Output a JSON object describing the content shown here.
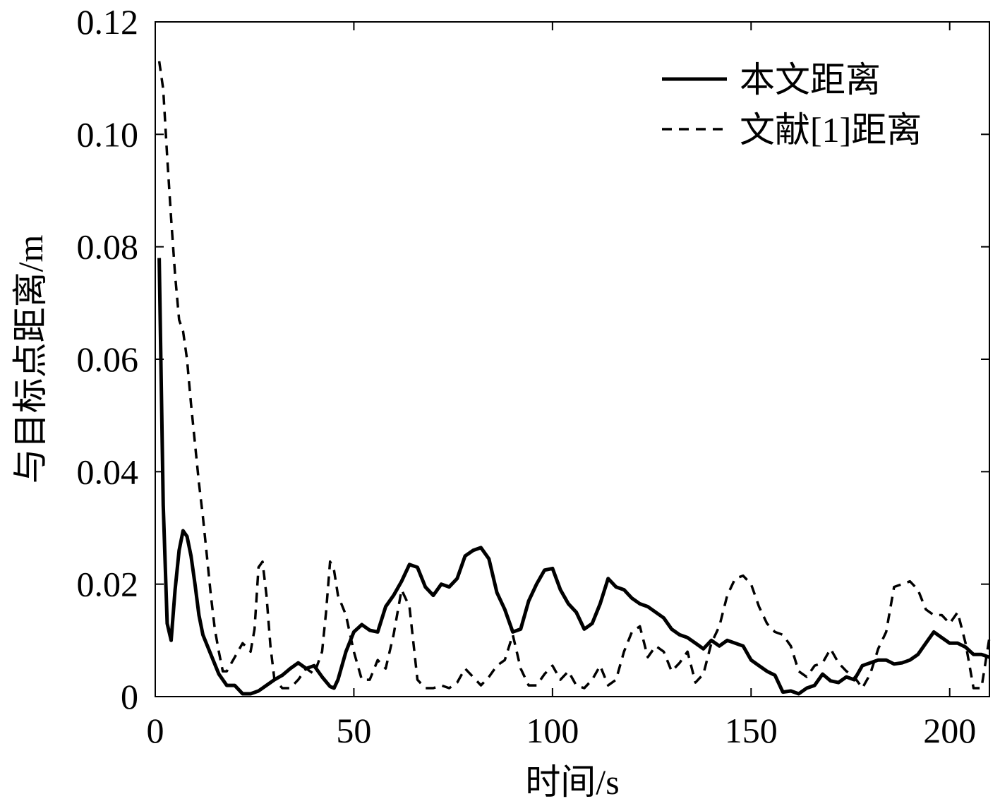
{
  "chart_data": {
    "type": "line",
    "title": "",
    "xlabel": "时间/s",
    "ylabel": "与目标点距离/m",
    "xlim": [
      0,
      210
    ],
    "ylim": [
      0,
      0.12
    ],
    "xticks": [
      0,
      50,
      100,
      150,
      200
    ],
    "xtick_labels": [
      "0",
      "50",
      "100",
      "150",
      "200"
    ],
    "yticks": [
      0,
      0.02,
      0.04,
      0.06,
      0.08,
      0.1,
      0.12
    ],
    "ytick_labels": [
      "0",
      "0.02",
      "0.04",
      "0.06",
      "0.08",
      "0.10",
      "0.12"
    ],
    "grid": false,
    "legend_position": "top-right",
    "series": [
      {
        "name": "本文距离",
        "style": "solid",
        "color": "#000000",
        "x": [
          1,
          2,
          3,
          4,
          5,
          6,
          7,
          8,
          9,
          10,
          11,
          12,
          14,
          16,
          18,
          20,
          22,
          24,
          26,
          28,
          30,
          32,
          34,
          36,
          38,
          40,
          42,
          44,
          45,
          46,
          48,
          50,
          52,
          54,
          56,
          58,
          60,
          62,
          64,
          66,
          68,
          70,
          72,
          74,
          76,
          78,
          80,
          82,
          84,
          86,
          88,
          90,
          92,
          94,
          96,
          98,
          100,
          102,
          104,
          106,
          108,
          110,
          112,
          114,
          116,
          118,
          120,
          122,
          124,
          126,
          128,
          130,
          132,
          134,
          136,
          138,
          140,
          142,
          144,
          146,
          148,
          150,
          152,
          154,
          156,
          158,
          160,
          162,
          164,
          166,
          168,
          170,
          172,
          174,
          176,
          178,
          180,
          182,
          184,
          186,
          188,
          190,
          192,
          194,
          196,
          198,
          200,
          202,
          204,
          206,
          208,
          210
        ],
        "y": [
          0.078,
          0.034,
          0.013,
          0.01,
          0.019,
          0.026,
          0.0295,
          0.0285,
          0.025,
          0.02,
          0.0145,
          0.011,
          0.0075,
          0.004,
          0.002,
          0.002,
          0.0005,
          0.0005,
          0.001,
          0.002,
          0.003,
          0.0038,
          0.005,
          0.006,
          0.005,
          0.0055,
          0.0035,
          0.0018,
          0.0015,
          0.003,
          0.008,
          0.0115,
          0.0128,
          0.0118,
          0.0115,
          0.016,
          0.018,
          0.0205,
          0.0235,
          0.023,
          0.0195,
          0.018,
          0.02,
          0.0195,
          0.021,
          0.025,
          0.026,
          0.0265,
          0.0245,
          0.0185,
          0.0155,
          0.0115,
          0.012,
          0.017,
          0.02,
          0.0225,
          0.0228,
          0.019,
          0.0165,
          0.015,
          0.012,
          0.013,
          0.0165,
          0.021,
          0.0195,
          0.019,
          0.0175,
          0.0165,
          0.016,
          0.015,
          0.014,
          0.012,
          0.011,
          0.0105,
          0.0095,
          0.0085,
          0.01,
          0.009,
          0.01,
          0.0095,
          0.009,
          0.0065,
          0.0055,
          0.0045,
          0.0038,
          0.0008,
          0.001,
          0.0005,
          0.0015,
          0.002,
          0.004,
          0.0028,
          0.0025,
          0.0035,
          0.003,
          0.0055,
          0.006,
          0.0065,
          0.0065,
          0.0058,
          0.006,
          0.0065,
          0.0075,
          0.0095,
          0.0115,
          0.0105,
          0.0095,
          0.0095,
          0.0088,
          0.0075,
          0.0075,
          0.007
        ]
      },
      {
        "name": "文献[1]距离",
        "style": "dashed",
        "color": "#000000",
        "x": [
          1,
          2,
          3,
          4,
          5,
          6,
          7,
          8,
          9,
          10,
          11,
          12,
          13,
          14,
          15,
          16,
          17,
          18,
          20,
          22,
          24,
          25,
          26,
          27,
          28,
          29,
          30,
          32,
          34,
          36,
          38,
          40,
          42,
          43,
          44,
          45,
          46,
          48,
          50,
          52,
          54,
          56,
          58,
          60,
          62,
          64,
          66,
          68,
          70,
          72,
          74,
          76,
          78,
          80,
          82,
          84,
          86,
          88,
          90,
          92,
          94,
          96,
          98,
          100,
          102,
          104,
          106,
          108,
          110,
          112,
          114,
          116,
          118,
          120,
          122,
          124,
          126,
          128,
          130,
          132,
          134,
          136,
          138,
          140,
          142,
          144,
          146,
          148,
          150,
          152,
          154,
          156,
          158,
          160,
          162,
          164,
          166,
          168,
          170,
          172,
          174,
          176,
          178,
          180,
          182,
          184,
          186,
          188,
          190,
          192,
          194,
          196,
          198,
          200,
          202,
          204,
          206,
          208,
          210
        ],
        "y": [
          0.113,
          0.108,
          0.096,
          0.085,
          0.075,
          0.067,
          0.065,
          0.06,
          0.052,
          0.045,
          0.038,
          0.032,
          0.025,
          0.018,
          0.012,
          0.008,
          0.0045,
          0.0045,
          0.007,
          0.0095,
          0.008,
          0.012,
          0.023,
          0.024,
          0.018,
          0.009,
          0.003,
          0.0015,
          0.0015,
          0.003,
          0.005,
          0.004,
          0.008,
          0.015,
          0.024,
          0.0225,
          0.018,
          0.0145,
          0.008,
          0.003,
          0.003,
          0.0065,
          0.005,
          0.011,
          0.019,
          0.016,
          0.003,
          0.0015,
          0.0015,
          0.002,
          0.0015,
          0.0025,
          0.005,
          0.0035,
          0.002,
          0.0035,
          0.0055,
          0.0065,
          0.011,
          0.005,
          0.002,
          0.002,
          0.004,
          0.0055,
          0.003,
          0.0045,
          0.002,
          0.0015,
          0.003,
          0.0055,
          0.002,
          0.003,
          0.008,
          0.0115,
          0.0125,
          0.007,
          0.009,
          0.008,
          0.0045,
          0.006,
          0.008,
          0.0025,
          0.004,
          0.0095,
          0.0125,
          0.018,
          0.021,
          0.0215,
          0.02,
          0.016,
          0.013,
          0.0115,
          0.011,
          0.009,
          0.0045,
          0.0035,
          0.0055,
          0.006,
          0.0085,
          0.006,
          0.0045,
          0.0035,
          0.0015,
          0.004,
          0.0085,
          0.0115,
          0.0195,
          0.02,
          0.0205,
          0.019,
          0.0155,
          0.0145,
          0.0145,
          0.013,
          0.015,
          0.0095,
          0.0015,
          0.0015,
          0.0105
        ]
      }
    ]
  }
}
